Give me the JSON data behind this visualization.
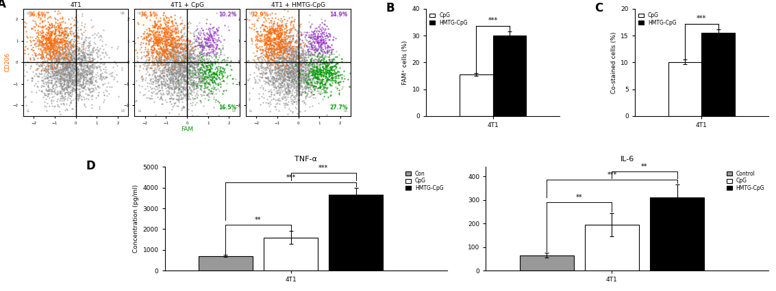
{
  "panel_A_titles": [
    "4T1",
    "4T1 + CpG",
    "4T1 + HMTG-CpG"
  ],
  "panel_A_percentages": [
    {
      "UL": "36.6%",
      "UR": "",
      "LL": "",
      "LR": ""
    },
    {
      "UL": "36.1%",
      "UR": "10.2%",
      "LL": "",
      "LR": "16.5%"
    },
    {
      "UL": "32.9%",
      "UR": "14.9%",
      "LL": "",
      "LR": "27.7%"
    }
  ],
  "panel_A_pct_colors": {
    "UL": "#FF6600",
    "UR": "#9933CC",
    "LR": "#009900"
  },
  "panel_B": {
    "CpG_values": [
      15.5
    ],
    "HMTG_values": [
      30.0
    ],
    "CpG_err": [
      0.5
    ],
    "HMTG_err": [
      1.5
    ],
    "ylabel": "FAM⁺ cells (%)",
    "ylim": [
      0,
      40
    ],
    "yticks": [
      0,
      10,
      20,
      30,
      40
    ],
    "sig_label": "***"
  },
  "panel_C": {
    "CpG_values": [
      10.1
    ],
    "HMTG_values": [
      15.5
    ],
    "CpG_err": [
      0.4
    ],
    "HMTG_err": [
      0.6
    ],
    "ylabel": "Co-stained cells (%)",
    "ylim": [
      0,
      20
    ],
    "yticks": [
      0,
      5,
      10,
      15,
      20
    ],
    "sig_label": "***"
  },
  "panel_D_TNF": {
    "title": "TNF-α",
    "Con_values": [
      700
    ],
    "CpG_values": [
      1600
    ],
    "HMTG_values": [
      3650
    ],
    "Con_err": [
      50
    ],
    "CpG_err": [
      300
    ],
    "HMTG_err": [
      350
    ],
    "ylabel": "Concentration (pg/ml)",
    "ylim": [
      0,
      5000
    ],
    "yticks": [
      0,
      1000,
      2000,
      3000,
      4000,
      5000
    ]
  },
  "panel_D_IL6": {
    "title": "IL-6",
    "Con_values": [
      65
    ],
    "CpG_values": [
      195
    ],
    "HMTG_values": [
      310
    ],
    "Con_err": [
      10
    ],
    "CpG_err": [
      50
    ],
    "HMTG_err": [
      55
    ],
    "ylim": [
      0,
      440
    ],
    "yticks": [
      0,
      100,
      200,
      300,
      400
    ]
  },
  "colors": {
    "Con": "#999999",
    "CpG": "#ffffff",
    "HMTG": "#000000",
    "bar_edge": "#000000"
  },
  "fam_label": "FAM",
  "cd206_label": "CD206"
}
